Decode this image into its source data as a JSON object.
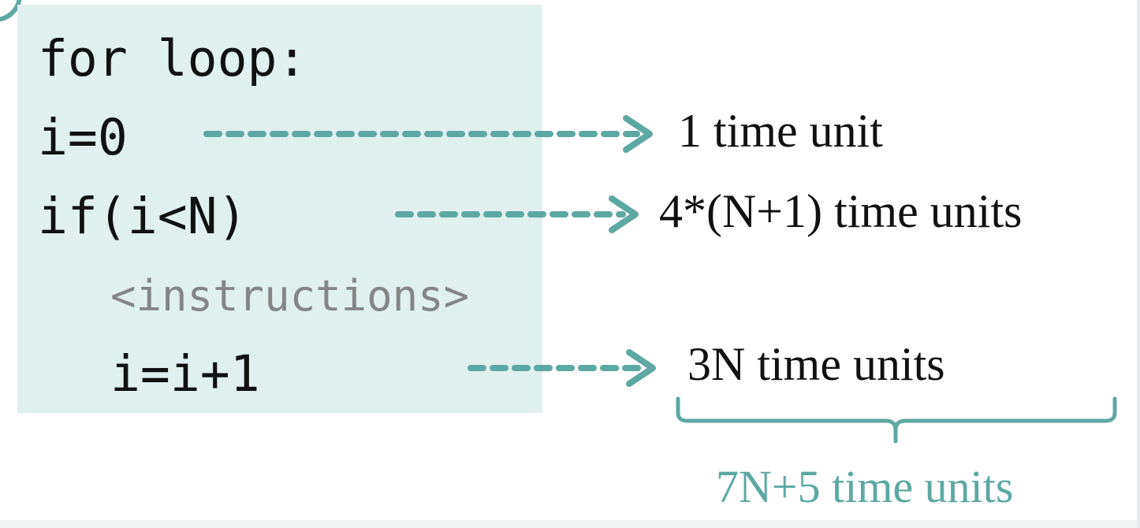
{
  "code_lines": [
    "for loop:",
    "i=0",
    "if(i<N)",
    "<instructions>",
    "i=i+1"
  ],
  "annotations": [
    "1 time unit",
    "4*(N+1) time units",
    "3N time units"
  ],
  "total": "7N+5 time units",
  "colors": {
    "panel_background": "#dff0ef",
    "accent": "#5ea8a3",
    "code_text": "#111111",
    "muted_text": "#858585"
  },
  "icons": {
    "arrow": "dashed-arrow-icon",
    "brace": "underbrace-icon"
  }
}
